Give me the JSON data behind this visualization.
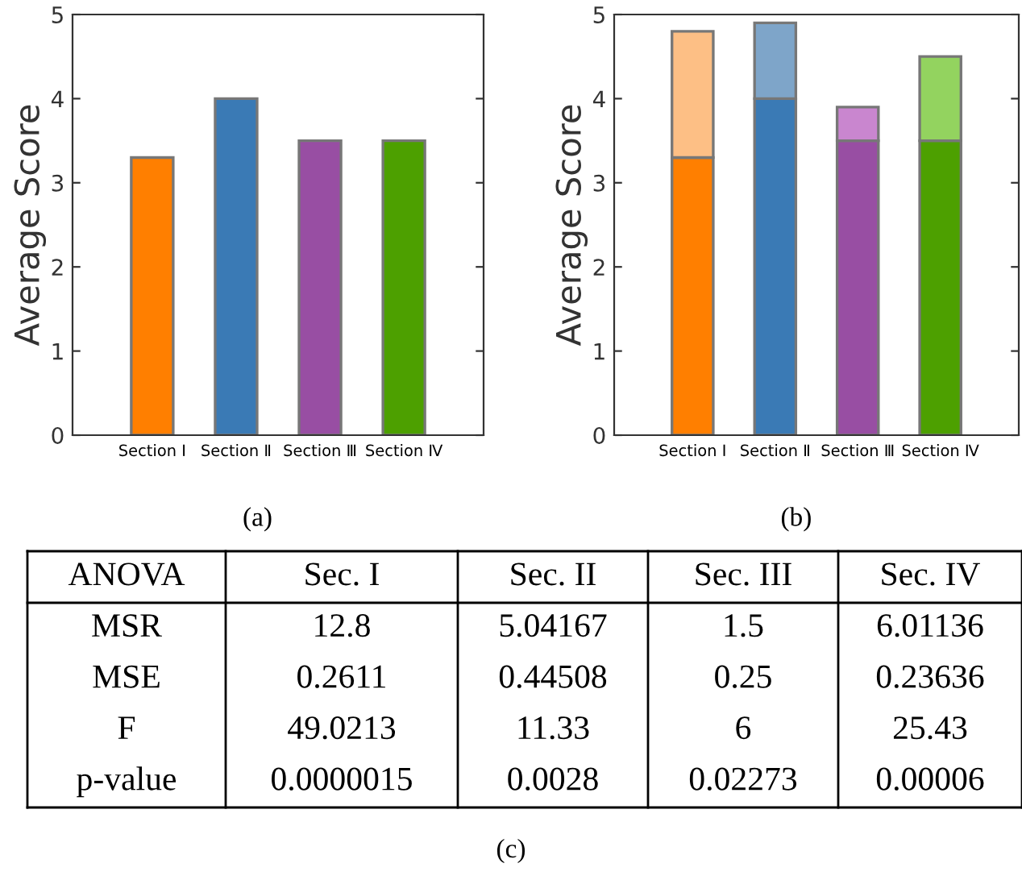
{
  "chart_data": [
    {
      "type": "bar",
      "title": "(a)",
      "ylabel": "Average Score",
      "categories": [
        "Section Ⅰ",
        "Section Ⅱ",
        "Section Ⅲ",
        "Section Ⅳ"
      ],
      "series": [
        {
          "values": [
            3.3,
            4.0,
            3.5,
            3.5
          ],
          "colors": [
            "#ff7f00",
            "#3a7ab5",
            "#984ea3",
            "#4da000"
          ]
        }
      ],
      "ylim": [
        0,
        5
      ],
      "yticks": [
        0,
        1,
        2,
        3,
        4,
        5
      ],
      "grid": false,
      "legend": false
    },
    {
      "type": "bar",
      "title": "(b)",
      "ylabel": "Average Score",
      "categories": [
        "Section Ⅰ",
        "Section Ⅱ",
        "Section Ⅲ",
        "Section Ⅳ"
      ],
      "stacked": true,
      "series": [
        {
          "values": [
            3.3,
            4.0,
            3.5,
            3.5
          ],
          "colors": [
            "#ff7f00",
            "#3a7ab5",
            "#984ea3",
            "#4da000"
          ]
        },
        {
          "values": [
            1.5,
            0.9,
            0.4,
            1.0
          ],
          "colors": [
            "#fdbf85",
            "#7ea5c9",
            "#c986cf",
            "#93d35f"
          ]
        }
      ],
      "ylim": [
        0,
        5
      ],
      "yticks": [
        0,
        1,
        2,
        3,
        4,
        5
      ],
      "grid": false,
      "legend": false
    },
    {
      "type": "other",
      "title": "(c)",
      "categories": [
        "ANOVA",
        "Sec. I",
        "Sec. II",
        "Sec. III",
        "Sec. IV"
      ],
      "cell_labels": [
        [
          "MSR",
          "12.8",
          "5.04167",
          "1.5",
          "6.01136"
        ],
        [
          "MSE",
          "0.2611",
          "0.44508",
          "0.25",
          "0.23636"
        ],
        [
          "F",
          "49.0213",
          "11.33",
          "6",
          "25.43"
        ],
        [
          "p-value",
          "0.0000015",
          "0.0028",
          "0.02273",
          "0.00006"
        ]
      ]
    }
  ]
}
